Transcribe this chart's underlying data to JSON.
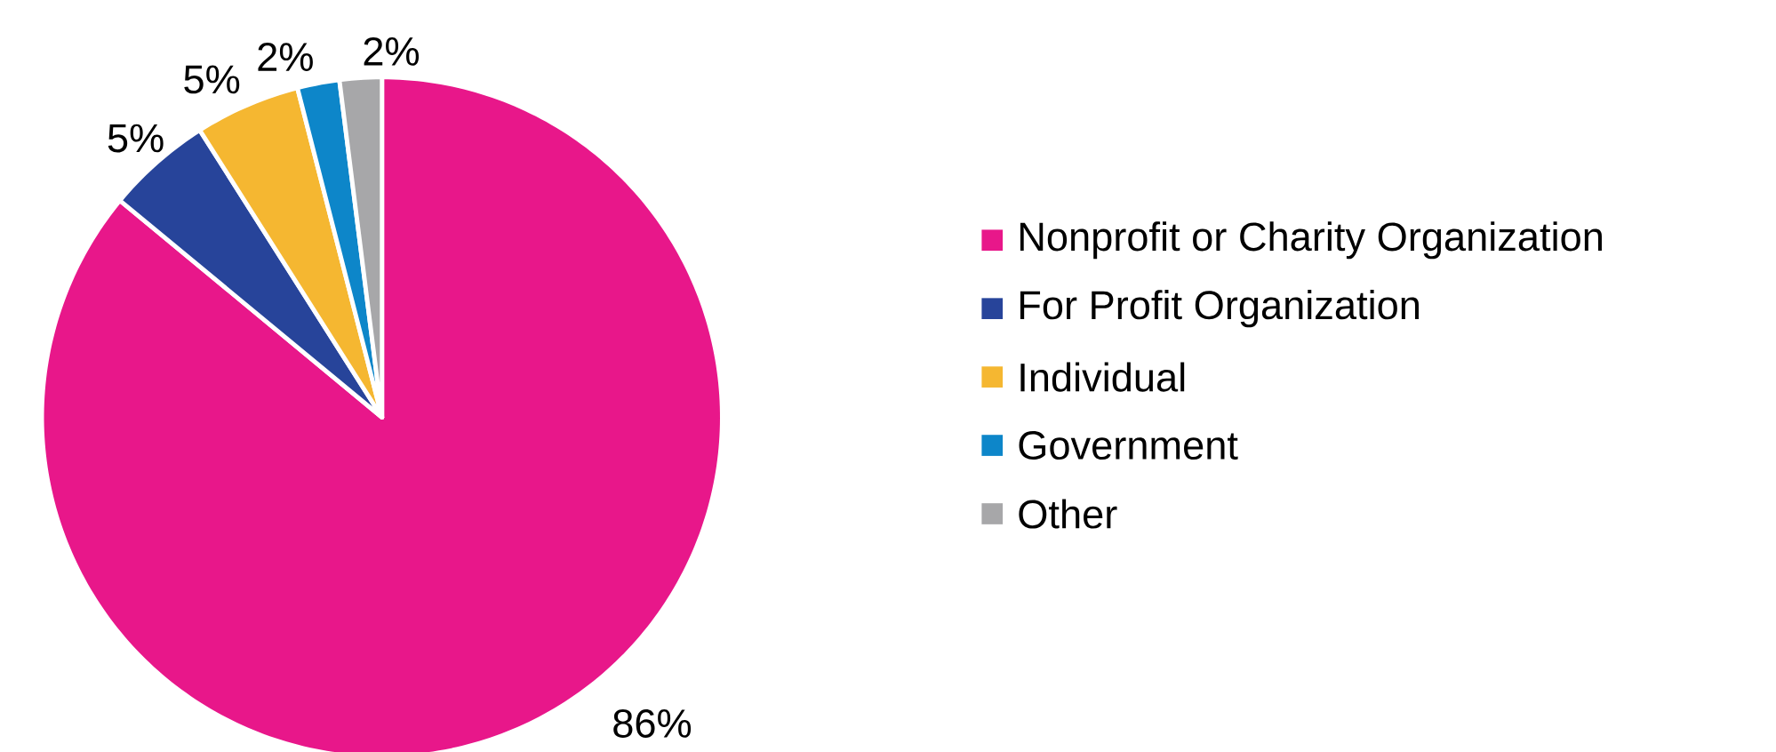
{
  "chart_data": {
    "type": "pie",
    "categories": [
      "Nonprofit or Charity Organization",
      "For Profit Organization",
      "Individual",
      "Government",
      "Other"
    ],
    "values": [
      86,
      5,
      5,
      2,
      2
    ],
    "value_labels": [
      "86%",
      "5%",
      "5%",
      "2%",
      "2%"
    ],
    "colors": [
      "#e8178a",
      "#27449a",
      "#f5b731",
      "#0d86c9",
      "#a7a7a9"
    ],
    "legend": "right"
  }
}
